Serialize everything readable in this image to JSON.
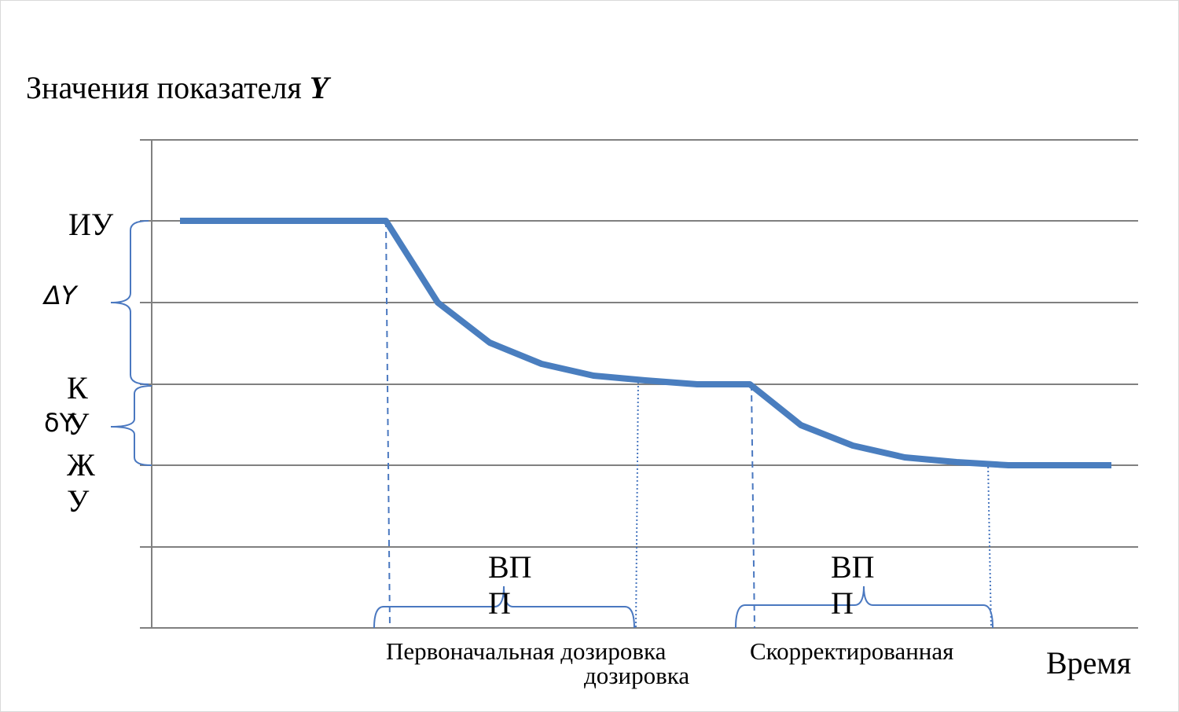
{
  "title": {
    "text": "Значения показателя ",
    "symbol": "Y"
  },
  "levels": [
    {
      "label": "ИУ",
      "delta": "ΔY"
    },
    {
      "label": "КУ",
      "delta": "δY"
    },
    {
      "label": "ЖУ"
    }
  ],
  "periods": [
    {
      "label": "ВПП",
      "caption": "Первоначальная дозировка",
      "caption_extra": "дозировка"
    },
    {
      "label": "ВПП",
      "caption": "Скорректированная"
    }
  ],
  "x_axis_label": "Время"
}
